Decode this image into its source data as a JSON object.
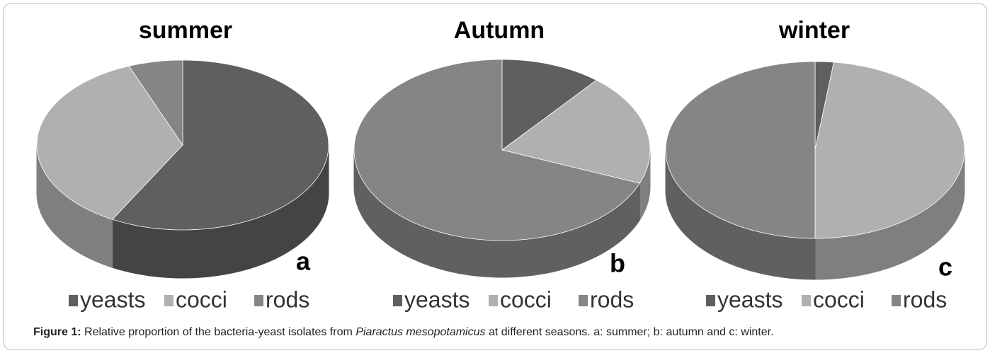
{
  "chart_data": [
    {
      "type": "pie",
      "title": "summer",
      "label": "a",
      "categories": [
        "yeasts",
        "cocci",
        "rods"
      ],
      "values": [
        58,
        36,
        6
      ],
      "colors": [
        "#5f5f5f",
        "#b0b0b0",
        "#858585"
      ]
    },
    {
      "type": "pie",
      "title": "Autumn",
      "label": "b",
      "categories": [
        "yeasts",
        "cocci",
        "rods"
      ],
      "values": [
        11,
        20,
        69
      ],
      "colors": [
        "#5f5f5f",
        "#b0b0b0",
        "#858585"
      ]
    },
    {
      "type": "pie",
      "title": "winter",
      "label": "c",
      "categories": [
        "yeasts",
        "cocci",
        "rods"
      ],
      "values": [
        2,
        48,
        50
      ],
      "colors": [
        "#5f5f5f",
        "#b0b0b0",
        "#858585"
      ]
    }
  ],
  "caption": {
    "label": "Figure 1:",
    "text_before": " Relative proportion of the bacteria-yeast isolates from ",
    "species": "Piaractus mesopotamicus",
    "text_after": " at different seasons. a: summer; b: autumn and c: winter."
  }
}
